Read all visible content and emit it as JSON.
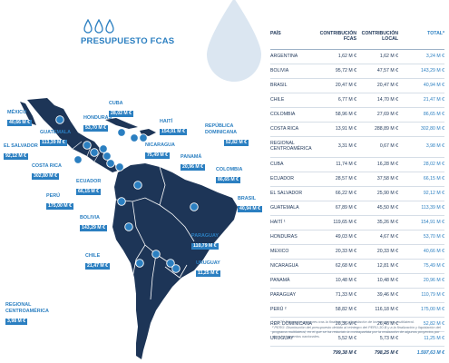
{
  "header": {
    "title": "PRESUPUESTO FCAS"
  },
  "colors": {
    "accent": "#2b7fc1",
    "map_land": "#1d3557",
    "drop": "#dbe6f1"
  },
  "map_labels": [
    {
      "id": "mexico",
      "name": "MÉXICO",
      "value": "40,66 M €"
    },
    {
      "id": "cuba",
      "name": "CUBA",
      "value": "28,02 M €"
    },
    {
      "id": "honduras",
      "name": "HONDURAS",
      "value": "53,70 M €"
    },
    {
      "id": "haiti",
      "name": "HAITÍ",
      "value": "154,91 M €"
    },
    {
      "id": "rep-dominicana",
      "name": "REPÚBLICA DOMINICANA",
      "value": "52,82 M €"
    },
    {
      "id": "guatemala",
      "name": "GUATEMALA",
      "value": "113,39 M €"
    },
    {
      "id": "nicaragua",
      "name": "NICARAGUA",
      "value": "75,49 M €"
    },
    {
      "id": "el-salvador",
      "name": "EL SALVADOR",
      "value": "92,12 M €"
    },
    {
      "id": "panama",
      "name": "PANAMÁ",
      "value": "20,96 M €"
    },
    {
      "id": "costa-rica",
      "name": "COSTA RICA",
      "value": "302,80 M €"
    },
    {
      "id": "colombia",
      "name": "COLOMBIA",
      "value": "86,65 M €"
    },
    {
      "id": "ecuador",
      "name": "ECUADOR",
      "value": "66,15 M €"
    },
    {
      "id": "peru",
      "name": "PERÚ",
      "value": "175,00 M €"
    },
    {
      "id": "brasil",
      "name": "BRASIL",
      "value": "40,94 M €"
    },
    {
      "id": "bolivia",
      "name": "BOLIVIA",
      "value": "143,29 M €"
    },
    {
      "id": "paraguay",
      "name": "PARAGUAY",
      "value": "110,79 M €"
    },
    {
      "id": "chile",
      "name": "CHILE",
      "value": "21,47 M €"
    },
    {
      "id": "uruguay",
      "name": "URUGUAY",
      "value": "11,25 M €"
    },
    {
      "id": "regional",
      "name": "REGIONAL CENTROAMÉRICA",
      "value": "3,98 M €"
    }
  ],
  "table": {
    "headers": {
      "pais": "PAÍS",
      "fcas": "CONTRIBUCIÓN FCAS",
      "local": "CONTRIBUCIÓN LOCAL",
      "total": "TOTAL*"
    },
    "rows": [
      {
        "pais": "ARGENTINA",
        "fcas": "1,62 M €",
        "local": "1,62 M €",
        "total": "3,24 M €"
      },
      {
        "pais": "BOLIVIA",
        "fcas": "95,72 M €",
        "local": "47,57 M €",
        "total": "143,29 M €"
      },
      {
        "pais": "BRASIL",
        "fcas": "20,47 M €",
        "local": "20,47 M €",
        "total": "40,94 M €"
      },
      {
        "pais": "CHILE",
        "fcas": "6,77 M €",
        "local": "14,70 M €",
        "total": "21,47 M €"
      },
      {
        "pais": "COLOMBIA",
        "fcas": "58,96 M €",
        "local": "27,69 M €",
        "total": "86,65 M €"
      },
      {
        "pais": "COSTA RICA",
        "fcas": "13,91 M €",
        "local": "288,89 M €",
        "total": "302,80 M €"
      },
      {
        "pais": "REGIONAL CENTROAMÉRICA",
        "fcas": "3,31 M €",
        "local": "0,67 M €",
        "total": "3,98 M €"
      },
      {
        "pais": "CUBA",
        "fcas": "11,74 M €",
        "local": "16,28 M €",
        "total": "28,02 M €"
      },
      {
        "pais": "ECUADOR",
        "fcas": "28,57 M €",
        "local": "37,58 M €",
        "total": "66,15 M €"
      },
      {
        "pais": "EL SALVADOR",
        "fcas": "66,22 M €",
        "local": "25,90 M €",
        "total": "92,12 M €"
      },
      {
        "pais": "GUATEMALA",
        "fcas": "67,89 M €",
        "local": "45,50 M €",
        "total": "113,39 M €"
      },
      {
        "pais": "HAITÍ ¹",
        "fcas": "119,65 M €",
        "local": "35,26 M €",
        "total": "154,91 M €"
      },
      {
        "pais": "HONDURAS",
        "fcas": "49,03 M €",
        "local": "4,67 M €",
        "total": "53,70 M €"
      },
      {
        "pais": "MEXICO",
        "fcas": "20,33 M €",
        "local": "20,33 M €",
        "total": "40,66 M €"
      },
      {
        "pais": "NICARAGUA",
        "fcas": "62,68 M €",
        "local": "12,81 M €",
        "total": "75,49 M €"
      },
      {
        "pais": "PANAMÁ",
        "fcas": "10,48 M €",
        "local": "10,48 M €",
        "total": "20,96 M €"
      },
      {
        "pais": "PARAGUAY",
        "fcas": "71,33 M €",
        "local": "39,46 M €",
        "total": "110,79 M €"
      },
      {
        "pais": "PERÚ ²",
        "fcas": "58,82 M €",
        "local": "116,18 M €",
        "total": "175,00 M €"
      },
      {
        "pais": "REP. DOMINICANA",
        "fcas": "26,36 M €",
        "local": "26,46 M €",
        "total": "52,82 M €"
      },
      {
        "pais": "URUGUAY",
        "fcas": "5,52 M €",
        "local": "5,73 M €",
        "total": "11,25 M €"
      }
    ],
    "totals": {
      "fcas": "799,38 M €",
      "local": "798,25 M €",
      "total": "1.597,63 M €"
    }
  },
  "notes": {
    "note1": "¹ HAITÍ: Diferencias menores tras la finalización y liquidación de los programas multilateral.",
    "note2": "² PERÚ: Disminución del presupuesto debido al reintegro del PERÚ-30-B y a la finalización y liquidación del programa multilateral, en el que se ha reducido la contrapartida por la realización de algunos proyectos por otros instrumentos nacionales."
  }
}
